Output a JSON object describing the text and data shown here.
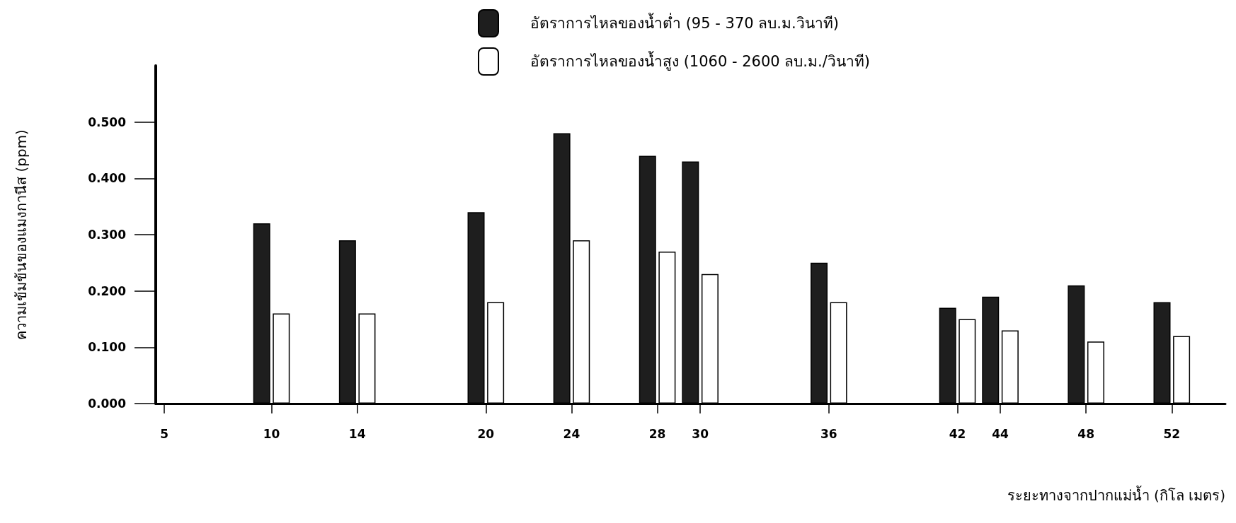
{
  "chart_data": {
    "type": "bar",
    "xlabel": "ระยะทางจากปากแม่น้ำ (กิโล เมตร)",
    "ylabel": "ความเข้มข้นของแมงกานีส (ppm)",
    "x": [
      10,
      14,
      20,
      24,
      28,
      30,
      36,
      42,
      44,
      48,
      52
    ],
    "series": [
      {
        "name": "อัตราการไหลของน้ำต่ำ (95 - 370 ลบ.ม.วินาที)",
        "color": "#1e1e1e",
        "values": [
          0.32,
          0.29,
          0.34,
          0.48,
          0.44,
          0.43,
          0.25,
          0.17,
          0.19,
          0.21,
          0.18
        ]
      },
      {
        "name": "อัตราการไหลของน้ำสูง (1060 - 2600 ลบ.ม./วินาที)",
        "color": "#ffffff",
        "values": [
          0.16,
          0.16,
          0.18,
          0.29,
          0.27,
          0.23,
          0.18,
          0.15,
          0.13,
          0.11,
          0.12
        ]
      }
    ],
    "xlim": [
      4.6,
      54.5
    ],
    "xticks": [
      5,
      10,
      14,
      20,
      24,
      28,
      30,
      36,
      42,
      44,
      48,
      52
    ],
    "ylim": [
      0,
      0.6
    ],
    "yticks": [
      {
        "value": 0,
        "label": "0.000"
      },
      {
        "value": 0.1,
        "label": "0.100"
      },
      {
        "value": 0.2,
        "label": "0.200"
      },
      {
        "value": 0.3,
        "label": "0.300"
      },
      {
        "value": 0.4,
        "label": "0.400"
      },
      {
        "value": 0.5,
        "label": "0.500"
      }
    ],
    "legend": "top",
    "grid": false
  }
}
